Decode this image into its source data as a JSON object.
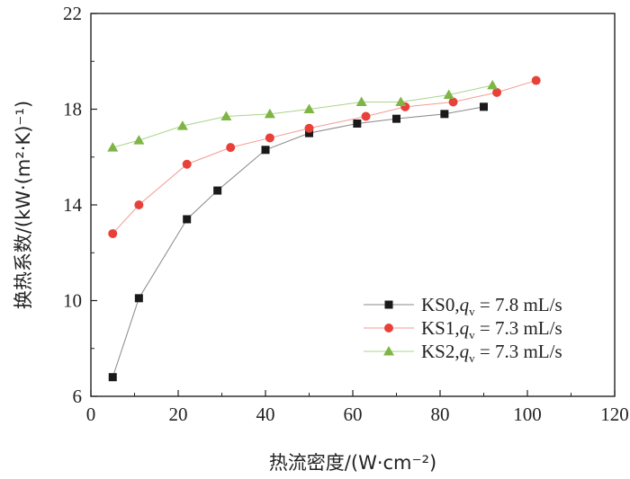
{
  "chart_data": {
    "type": "line",
    "xlabel": "热流密度/(W·cm⁻²)",
    "ylabel": "换热系数/(kW·(m²·K)⁻¹)",
    "xlim": [
      0,
      120
    ],
    "ylim": [
      6,
      22
    ],
    "xticks": [
      0,
      20,
      40,
      60,
      80,
      100,
      120
    ],
    "yticks": [
      6,
      10,
      14,
      18,
      22
    ],
    "grid": false,
    "legend_position": "bottom-right",
    "series": [
      {
        "name": "KS0,qv = 7.8 mL/s",
        "legend_prefix": "KS0,",
        "legend_var": "q",
        "legend_sub": "v",
        "legend_suffix": " = 7.8 mL/s",
        "marker": "square",
        "color": "#1a1a1a",
        "line_color": "#888888",
        "x": [
          5,
          11,
          22,
          29,
          40,
          50,
          61,
          70,
          81,
          90
        ],
        "y": [
          6.8,
          10.1,
          13.4,
          14.6,
          16.3,
          17.0,
          17.4,
          17.6,
          17.8,
          18.1
        ]
      },
      {
        "name": "KS1,qv = 7.3 mL/s",
        "legend_prefix": "KS1,",
        "legend_var": "q",
        "legend_sub": "v",
        "legend_suffix": " = 7.3 mL/s",
        "marker": "circle",
        "color": "#e8413a",
        "line_color": "#f29b95",
        "x": [
          5,
          11,
          22,
          32,
          41,
          50,
          63,
          72,
          83,
          93,
          102
        ],
        "y": [
          12.8,
          14.0,
          15.7,
          16.4,
          16.8,
          17.2,
          17.7,
          18.1,
          18.3,
          18.7,
          19.2
        ]
      },
      {
        "name": "KS2,qv = 7.3 mL/s",
        "legend_prefix": "KS2,",
        "legend_var": "q",
        "legend_sub": "v",
        "legend_suffix": " = 7.3 mL/s",
        "marker": "triangle",
        "color": "#7fb545",
        "line_color": "#a9d48a",
        "x": [
          5,
          11,
          21,
          31,
          41,
          50,
          62,
          71,
          82,
          92
        ],
        "y": [
          16.4,
          16.7,
          17.3,
          17.7,
          17.8,
          18.0,
          18.3,
          18.3,
          18.6,
          19.0
        ]
      }
    ]
  }
}
